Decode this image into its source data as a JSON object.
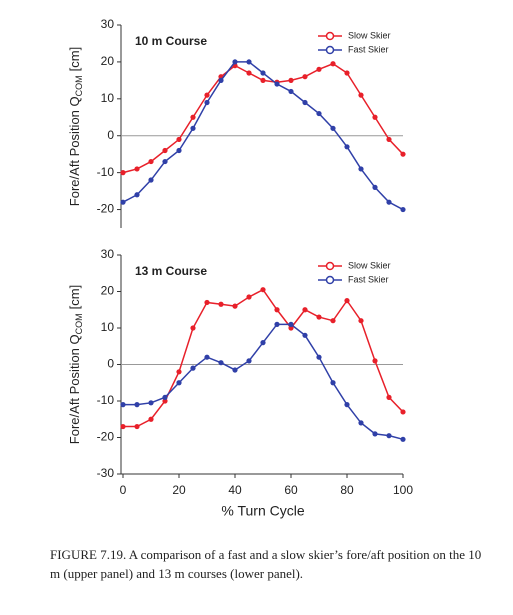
{
  "chart_data": [
    {
      "type": "line",
      "title": "10 m Course",
      "y_label": "Fore/Aft Position Q",
      "y_label_sub": "COM",
      "y_label_unit": "[cm]",
      "x": [
        0,
        5,
        10,
        15,
        20,
        25,
        30,
        35,
        40,
        45,
        50,
        55,
        60,
        65,
        70,
        75,
        80,
        85,
        90,
        95,
        100
      ],
      "xlim": [
        0,
        100
      ],
      "ylim": [
        -25,
        30
      ],
      "yticks": [
        -20,
        -10,
        0,
        10,
        20,
        30
      ],
      "series": [
        {
          "name": "Slow Skier",
          "color": "#e8202a",
          "values": [
            -10,
            -9,
            -7,
            -4,
            -1,
            5,
            11,
            16,
            19,
            17,
            15,
            14.5,
            15,
            16,
            18,
            19.5,
            17,
            11,
            5,
            -1,
            -5
          ]
        },
        {
          "name": "Fast Skier",
          "color": "#3040a8",
          "values": [
            -18,
            -16,
            -12,
            -7,
            -4,
            2,
            9,
            15,
            20,
            20,
            17,
            14,
            12,
            9,
            6,
            2,
            -3,
            -9,
            -14,
            -18,
            -20
          ]
        }
      ]
    },
    {
      "type": "line",
      "title": "13 m Course",
      "y_label": "Fore/Aft Position Q",
      "y_label_sub": "COM",
      "y_label_unit": "[cm]",
      "x_label": "% Turn Cycle",
      "x": [
        0,
        5,
        10,
        15,
        20,
        25,
        30,
        35,
        40,
        45,
        50,
        55,
        60,
        65,
        70,
        75,
        80,
        85,
        90,
        95,
        100
      ],
      "xlim": [
        0,
        100
      ],
      "xticks": [
        0,
        20,
        40,
        60,
        80,
        100
      ],
      "ylim": [
        -30,
        30
      ],
      "yticks": [
        -30,
        -20,
        -10,
        0,
        10,
        20,
        30
      ],
      "series": [
        {
          "name": "Slow Skier",
          "color": "#e8202a",
          "values": [
            -17,
            -17,
            -15,
            -10,
            -2,
            10,
            17,
            16.5,
            16,
            18.5,
            20.5,
            15,
            10,
            15,
            13,
            12,
            17.5,
            12,
            1,
            -9,
            -13
          ]
        },
        {
          "name": "Fast Skier",
          "color": "#3040a8",
          "values": [
            -11,
            -11,
            -10.5,
            -9,
            -5,
            -1,
            2,
            0.5,
            -1.5,
            1,
            6,
            11,
            11,
            8,
            2,
            -5,
            -11,
            -16,
            -19,
            -19.5,
            -20.5
          ]
        }
      ]
    }
  ],
  "caption": "FIGURE 7.19. A comparison of a fast and a slow skier’s fore/aft position on the 10 m (upper panel) and 13 m courses (lower panel)."
}
